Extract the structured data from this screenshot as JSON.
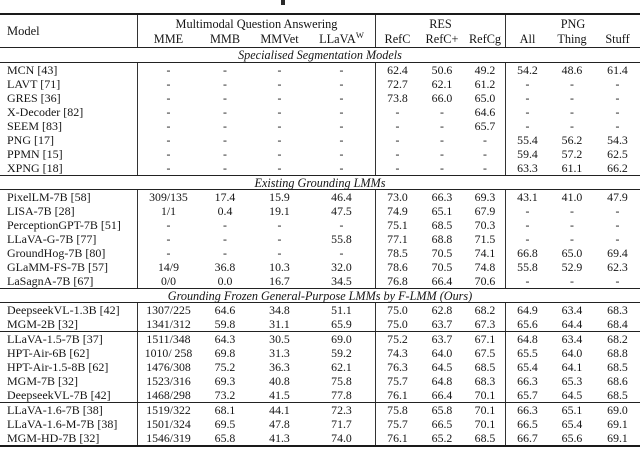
{
  "colors": {
    "ink": "#151515",
    "rule_thick": "#1a1a1a",
    "rule_thin": "#222222",
    "background": "#ffffff"
  },
  "table": {
    "header": {
      "model_col": "Model",
      "groups": [
        {
          "label": "Multimodal Question Answering"
        },
        {
          "label": "RES"
        },
        {
          "label": "PNG"
        }
      ],
      "sub_cols": [
        "MME",
        "MMB",
        "MMVet",
        "LLaVA",
        "RefC",
        "RefC+",
        "RefCg",
        "All",
        "Thing",
        "Stuff"
      ],
      "llava_sup": "W"
    },
    "sections": [
      {
        "title": "Specialised Segmentation Models",
        "groups": [
          {
            "rows": [
              {
                "model": "MCN [43]",
                "values": [
                  "-",
                  "-",
                  "-",
                  "-",
                  "62.4",
                  "50.6",
                  "49.2",
                  "54.2",
                  "48.6",
                  "61.4"
                ]
              },
              {
                "model": "LAVT [71]",
                "values": [
                  "-",
                  "-",
                  "-",
                  "-",
                  "72.7",
                  "62.1",
                  "61.2",
                  "-",
                  "-",
                  "-"
                ]
              },
              {
                "model": "GRES [36]",
                "values": [
                  "-",
                  "-",
                  "-",
                  "-",
                  "73.8",
                  "66.0",
                  "65.0",
                  "-",
                  "-",
                  "-"
                ]
              },
              {
                "model": "X-Decoder [82]",
                "values": [
                  "-",
                  "-",
                  "-",
                  "-",
                  "-",
                  "-",
                  "64.6",
                  "-",
                  "-",
                  "-"
                ]
              },
              {
                "model": "SEEM [83]",
                "values": [
                  "-",
                  "-",
                  "-",
                  "-",
                  "-",
                  "-",
                  "65.7",
                  "-",
                  "-",
                  "-"
                ]
              },
              {
                "model": "PNG [17]",
                "values": [
                  "-",
                  "-",
                  "-",
                  "-",
                  "-",
                  "-",
                  "-",
                  "55.4",
                  "56.2",
                  "54.3"
                ]
              },
              {
                "model": "PPMN [15]",
                "values": [
                  "-",
                  "-",
                  "-",
                  "-",
                  "-",
                  "-",
                  "-",
                  "59.4",
                  "57.2",
                  "62.5"
                ]
              },
              {
                "model": "XPNG [18]",
                "values": [
                  "-",
                  "-",
                  "-",
                  "-",
                  "-",
                  "-",
                  "-",
                  "63.3",
                  "61.1",
                  "66.2"
                ]
              }
            ]
          }
        ]
      },
      {
        "title": "Existing Grounding LMMs",
        "groups": [
          {
            "rows": [
              {
                "model": "PixelLM-7B [58]",
                "values": [
                  "309/135",
                  "17.4",
                  "15.9",
                  "46.4",
                  "73.0",
                  "66.3",
                  "69.3",
                  "43.1",
                  "41.0",
                  "47.9"
                ]
              },
              {
                "model": "LISA-7B [28]",
                "values": [
                  "1/1",
                  "0.4",
                  "19.1",
                  "47.5",
                  "74.9",
                  "65.1",
                  "67.9",
                  "-",
                  "-",
                  "-"
                ]
              },
              {
                "model": "PerceptionGPT-7B [51]",
                "values": [
                  "-",
                  "-",
                  "-",
                  "-",
                  "75.1",
                  "68.5",
                  "70.3",
                  "-",
                  "-",
                  "-"
                ]
              },
              {
                "model": "LLaVA-G-7B [77]",
                "values": [
                  "-",
                  "-",
                  "-",
                  "55.8",
                  "77.1",
                  "68.8",
                  "71.5",
                  "-",
                  "-",
                  "-"
                ]
              },
              {
                "model": "GroundHog-7B [80]",
                "values": [
                  "-",
                  "-",
                  "-",
                  "-",
                  "78.5",
                  "70.5",
                  "74.1",
                  "66.8",
                  "65.0",
                  "69.4"
                ]
              },
              {
                "model": "GLaMM-FS-7B [57]",
                "values": [
                  "14/9",
                  "36.8",
                  "10.3",
                  "32.0",
                  "78.6",
                  "70.5",
                  "74.8",
                  "55.8",
                  "52.9",
                  "62.3"
                ]
              },
              {
                "model": "LaSagnA-7B [67]",
                "values": [
                  "0/0",
                  "0.0",
                  "16.7",
                  "34.5",
                  "76.8",
                  "66.4",
                  "70.6",
                  "-",
                  "-",
                  "-"
                ]
              }
            ]
          }
        ]
      },
      {
        "title": "Grounding Frozen General-Purpose LMMs by F-LMM (Ours)",
        "groups": [
          {
            "rows": [
              {
                "model": "DeepseekVL-1.3B [42]",
                "values": [
                  "1307/225",
                  "64.6",
                  "34.8",
                  "51.1",
                  "75.0",
                  "62.8",
                  "68.2",
                  "64.9",
                  "63.4",
                  "68.3"
                ]
              },
              {
                "model": "MGM-2B [32]",
                "values": [
                  "1341/312",
                  "59.8",
                  "31.1",
                  "65.9",
                  "75.0",
                  "63.7",
                  "67.3",
                  "65.6",
                  "64.4",
                  "68.4"
                ]
              }
            ]
          },
          {
            "rows": [
              {
                "model": "LLaVA-1.5-7B [37]",
                "values": [
                  "1511/348",
                  "64.3",
                  "30.5",
                  "69.0",
                  "75.2",
                  "63.7",
                  "67.1",
                  "64.8",
                  "63.4",
                  "68.2"
                ]
              },
              {
                "model": "HPT-Air-6B [62]",
                "values": [
                  "1010/ 258",
                  "69.8",
                  "31.3",
                  "59.2",
                  "74.3",
                  "64.0",
                  "67.5",
                  "65.5",
                  "64.0",
                  "68.8"
                ]
              },
              {
                "model": "HPT-Air-1.5-8B [62]",
                "values": [
                  "1476/308",
                  "75.2",
                  "36.3",
                  "62.1",
                  "76.3",
                  "64.5",
                  "68.5",
                  "65.4",
                  "64.1",
                  "68.5"
                ]
              },
              {
                "model": "MGM-7B [32]",
                "values": [
                  "1523/316",
                  "69.3",
                  "40.8",
                  "75.8",
                  "75.7",
                  "64.8",
                  "68.3",
                  "66.3",
                  "65.3",
                  "68.6"
                ]
              },
              {
                "model": "DeepseekVL-7B [42]",
                "values": [
                  "1468/298",
                  "73.2",
                  "41.5",
                  "77.8",
                  "76.1",
                  "66.4",
                  "70.1",
                  "65.7",
                  "64.5",
                  "68.5"
                ]
              }
            ]
          },
          {
            "rows": [
              {
                "model": "LLaVA-1.6-7B [38]",
                "values": [
                  "1519/322",
                  "68.1",
                  "44.1",
                  "72.3",
                  "75.8",
                  "65.8",
                  "70.1",
                  "66.3",
                  "65.1",
                  "69.0"
                ]
              },
              {
                "model": "LLaVA-1.6-M-7B [38]",
                "values": [
                  "1501/324",
                  "69.5",
                  "47.8",
                  "71.7",
                  "75.7",
                  "66.5",
                  "70.1",
                  "66.5",
                  "65.4",
                  "69.1"
                ]
              },
              {
                "model": "MGM-HD-7B [32]",
                "values": [
                  "1546/319",
                  "65.8",
                  "41.3",
                  "74.0",
                  "76.1",
                  "65.2",
                  "68.5",
                  "66.7",
                  "65.6",
                  "69.1"
                ]
              }
            ]
          }
        ]
      }
    ]
  }
}
